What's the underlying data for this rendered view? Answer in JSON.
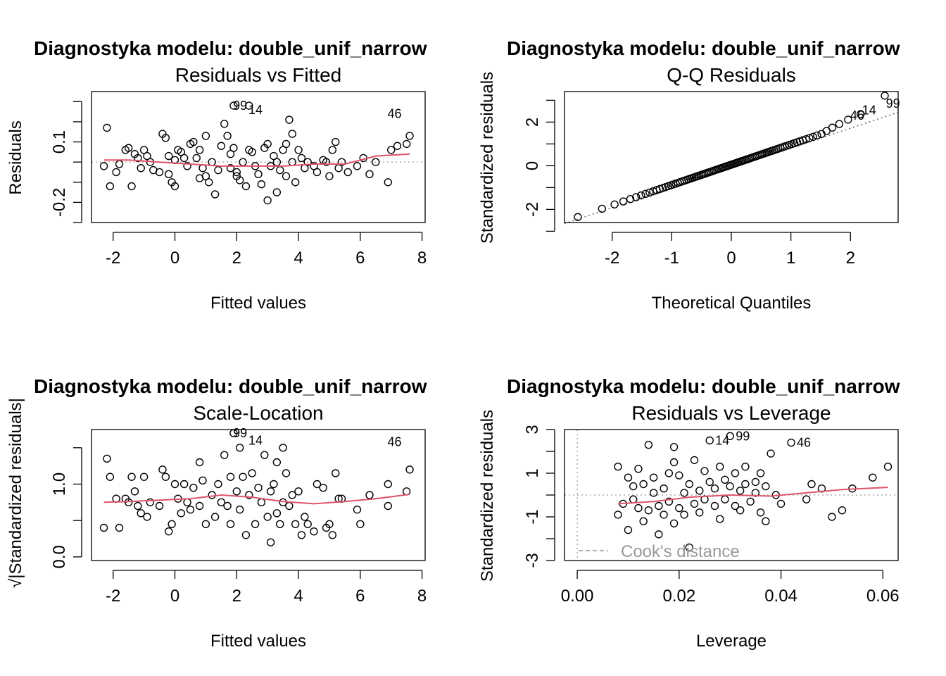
{
  "chart_data": [
    {
      "type": "scatter",
      "title": "Diagnostyka modelu: double_unif_narrow",
      "subtitle": "Residuals vs Fitted",
      "xlabel": "Fitted values",
      "ylabel": "Residuals",
      "xlim": [
        -2.7,
        8.1
      ],
      "ylim": [
        -0.3,
        0.35
      ],
      "xticks": [
        -2,
        0,
        2,
        4,
        6,
        8
      ],
      "xtick_labels": [
        "-2",
        "0",
        "2",
        "4",
        "6",
        "8"
      ],
      "yticks": [
        -0.3,
        -0.2,
        -0.1,
        0.0,
        0.1,
        0.2,
        0.3
      ],
      "ytick_labels": [
        "",
        "-0.2",
        "",
        "",
        "0.1",
        "",
        ""
      ],
      "hline": 0,
      "points": [
        [
          -2.3,
          -0.02
        ],
        [
          -2.2,
          0.17
        ],
        [
          -2.1,
          -0.12
        ],
        [
          -1.9,
          -0.05
        ],
        [
          -1.8,
          -0.01
        ],
        [
          -1.6,
          0.06
        ],
        [
          -1.5,
          0.07
        ],
        [
          -1.4,
          -0.12
        ],
        [
          -1.3,
          0.04
        ],
        [
          -1.2,
          0.02
        ],
        [
          -1.1,
          -0.03
        ],
        [
          -1.0,
          0.06
        ],
        [
          -0.9,
          0.03
        ],
        [
          -0.8,
          0.0
        ],
        [
          -0.7,
          -0.04
        ],
        [
          -0.5,
          -0.05
        ],
        [
          -0.4,
          0.14
        ],
        [
          -0.3,
          0.12
        ],
        [
          -0.2,
          0.03
        ],
        [
          -0.2,
          -0.06
        ],
        [
          -0.1,
          -0.1
        ],
        [
          0.0,
          -0.12
        ],
        [
          0.0,
          0.01
        ],
        [
          0.1,
          0.06
        ],
        [
          0.2,
          0.05
        ],
        [
          0.3,
          0.02
        ],
        [
          0.4,
          -0.02
        ],
        [
          0.5,
          0.09
        ],
        [
          0.6,
          0.1
        ],
        [
          0.7,
          0.02
        ],
        [
          0.8,
          -0.08
        ],
        [
          0.8,
          0.06
        ],
        [
          0.9,
          -0.03
        ],
        [
          1.0,
          0.13
        ],
        [
          1.0,
          -0.07
        ],
        [
          1.1,
          -0.1
        ],
        [
          1.2,
          0.0
        ],
        [
          1.3,
          -0.16
        ],
        [
          1.4,
          -0.04
        ],
        [
          1.5,
          0.08
        ],
        [
          1.6,
          0.19
        ],
        [
          1.7,
          0.13
        ],
        [
          1.8,
          0.04
        ],
        [
          1.8,
          -0.03
        ],
        [
          1.9,
          0.07
        ],
        [
          1.9,
          0.28
        ],
        [
          2.0,
          -0.05
        ],
        [
          2.0,
          -0.07
        ],
        [
          2.1,
          -0.09
        ],
        [
          2.2,
          0.0
        ],
        [
          2.3,
          -0.12
        ],
        [
          2.4,
          0.06
        ],
        [
          2.5,
          0.05
        ],
        [
          2.6,
          -0.02
        ],
        [
          2.7,
          -0.06
        ],
        [
          2.8,
          -0.11
        ],
        [
          2.9,
          0.07
        ],
        [
          3.0,
          0.09
        ],
        [
          3.0,
          -0.19
        ],
        [
          3.1,
          -0.02
        ],
        [
          3.2,
          0.03
        ],
        [
          3.3,
          0.0
        ],
        [
          3.3,
          -0.15
        ],
        [
          3.4,
          -0.04
        ],
        [
          3.5,
          0.06
        ],
        [
          3.6,
          0.09
        ],
        [
          3.6,
          -0.07
        ],
        [
          3.7,
          0.21
        ],
        [
          3.8,
          0.0
        ],
        [
          3.8,
          0.14
        ],
        [
          3.9,
          -0.1
        ],
        [
          4.0,
          0.06
        ],
        [
          4.1,
          0.02
        ],
        [
          4.2,
          -0.03
        ],
        [
          4.3,
          0.0
        ],
        [
          4.5,
          -0.02
        ],
        [
          4.6,
          -0.05
        ],
        [
          4.8,
          0.01
        ],
        [
          4.9,
          0.0
        ],
        [
          5.0,
          -0.07
        ],
        [
          5.1,
          0.06
        ],
        [
          5.2,
          0.1
        ],
        [
          5.3,
          -0.03
        ],
        [
          5.4,
          0.0
        ],
        [
          5.6,
          -0.05
        ],
        [
          5.9,
          -0.02
        ],
        [
          6.1,
          0.02
        ],
        [
          6.3,
          -0.06
        ],
        [
          6.5,
          0.0
        ],
        [
          6.9,
          -0.1
        ],
        [
          7.0,
          0.06
        ],
        [
          7.2,
          0.08
        ],
        [
          7.5,
          0.09
        ],
        [
          7.6,
          0.13
        ],
        [
          2.4,
          0.28
        ]
      ],
      "labeled_points": [
        {
          "label": "99",
          "x": 1.7,
          "y": 0.28
        },
        {
          "label": "14",
          "x": 2.2,
          "y": 0.26
        },
        {
          "label": "46",
          "x": 6.7,
          "y": 0.24
        }
      ],
      "smooth_line": [
        [
          -2.3,
          0.01
        ],
        [
          -1.5,
          0.01
        ],
        [
          -0.5,
          0.0
        ],
        [
          0.5,
          -0.01
        ],
        [
          1.5,
          -0.02
        ],
        [
          2.5,
          -0.02
        ],
        [
          3.5,
          -0.02
        ],
        [
          4.5,
          -0.01
        ],
        [
          5.5,
          -0.01
        ],
        [
          6.5,
          0.03
        ],
        [
          7.6,
          0.04
        ]
      ]
    },
    {
      "type": "scatter",
      "title": "Diagnostyka modelu: double_unif_narrow",
      "subtitle": "Q-Q Residuals",
      "xlabel": "Theoretical Quantiles",
      "ylabel": "Standardized residuals",
      "xlim": [
        -2.8,
        2.8
      ],
      "ylim": [
        -2.6,
        3.4
      ],
      "xticks": [
        -2,
        -1,
        0,
        1,
        2
      ],
      "xtick_labels": [
        "-2",
        "-1",
        "0",
        "1",
        "2"
      ],
      "yticks": [
        -3,
        -2,
        -1,
        0,
        1,
        2,
        3
      ],
      "ytick_labels": [
        "",
        "-2",
        "",
        "0",
        "",
        "2",
        ""
      ],
      "reference_line": [
        [
          -2.8,
          -2.65
        ],
        [
          2.8,
          2.45
        ]
      ],
      "qq_points": {
        "n": 100,
        "min": -2.35,
        "max": 2.85
      },
      "labeled_points": [
        {
          "label": "46",
          "x": 1.9,
          "y": 2.3
        },
        {
          "label": "14",
          "x": 2.1,
          "y": 2.55
        },
        {
          "label": "99",
          "x": 2.5,
          "y": 2.85
        }
      ]
    },
    {
      "type": "scatter",
      "title": "Diagnostyka modelu: double_unif_narrow",
      "subtitle": "Scale-Location",
      "xlabel": "Fitted values",
      "ylabel": "√|Standardized residuals|",
      "xlim": [
        -2.7,
        8.1
      ],
      "ylim": [
        -0.05,
        1.75
      ],
      "xticks": [
        -2,
        0,
        2,
        4,
        6,
        8
      ],
      "xtick_labels": [
        "-2",
        "0",
        "2",
        "4",
        "6",
        "8"
      ],
      "yticks": [
        0.0,
        0.5,
        1.0,
        1.5
      ],
      "ytick_labels": [
        "0.0",
        "",
        "1.0",
        ""
      ],
      "points": [
        [
          -2.3,
          0.4
        ],
        [
          -2.2,
          1.35
        ],
        [
          -2.1,
          1.1
        ],
        [
          -1.9,
          0.8
        ],
        [
          -1.8,
          0.4
        ],
        [
          -1.6,
          0.8
        ],
        [
          -1.5,
          0.75
        ],
        [
          -1.4,
          1.1
        ],
        [
          -1.3,
          0.9
        ],
        [
          -1.2,
          0.7
        ],
        [
          -1.1,
          0.6
        ],
        [
          -1.0,
          1.1
        ],
        [
          -0.9,
          0.55
        ],
        [
          -0.8,
          0.75
        ],
        [
          -0.5,
          0.7
        ],
        [
          -0.4,
          1.2
        ],
        [
          -0.3,
          1.1
        ],
        [
          -0.2,
          0.35
        ],
        [
          -0.1,
          0.45
        ],
        [
          0.0,
          1.0
        ],
        [
          0.1,
          0.8
        ],
        [
          0.2,
          0.6
        ],
        [
          0.3,
          1.0
        ],
        [
          0.4,
          0.75
        ],
        [
          0.5,
          0.65
        ],
        [
          0.6,
          0.95
        ],
        [
          0.8,
          1.3
        ],
        [
          0.8,
          0.7
        ],
        [
          0.9,
          1.05
        ],
        [
          1.0,
          0.45
        ],
        [
          1.2,
          0.85
        ],
        [
          1.3,
          0.55
        ],
        [
          1.4,
          1.0
        ],
        [
          1.5,
          0.75
        ],
        [
          1.6,
          1.4
        ],
        [
          1.7,
          0.7
        ],
        [
          1.8,
          1.1
        ],
        [
          1.8,
          0.45
        ],
        [
          1.9,
          1.7
        ],
        [
          2.0,
          0.9
        ],
        [
          2.1,
          0.65
        ],
        [
          2.1,
          1.5
        ],
        [
          2.2,
          1.1
        ],
        [
          2.3,
          0.3
        ],
        [
          2.4,
          0.85
        ],
        [
          2.5,
          1.15
        ],
        [
          2.6,
          0.45
        ],
        [
          2.7,
          0.95
        ],
        [
          2.8,
          0.75
        ],
        [
          2.9,
          1.4
        ],
        [
          3.0,
          0.55
        ],
        [
          3.1,
          0.2
        ],
        [
          3.1,
          0.9
        ],
        [
          3.2,
          1.0
        ],
        [
          3.3,
          0.6
        ],
        [
          3.3,
          1.3
        ],
        [
          3.4,
          0.45
        ],
        [
          3.5,
          1.5
        ],
        [
          3.5,
          0.75
        ],
        [
          3.6,
          1.15
        ],
        [
          3.7,
          0.7
        ],
        [
          3.8,
          0.85
        ],
        [
          3.9,
          0.45
        ],
        [
          4.0,
          0.9
        ],
        [
          4.1,
          0.3
        ],
        [
          4.2,
          0.55
        ],
        [
          4.3,
          0.45
        ],
        [
          4.5,
          0.35
        ],
        [
          4.6,
          1.0
        ],
        [
          4.8,
          0.95
        ],
        [
          4.9,
          0.4
        ],
        [
          5.0,
          0.45
        ],
        [
          5.1,
          0.3
        ],
        [
          5.2,
          1.15
        ],
        [
          5.3,
          0.8
        ],
        [
          5.4,
          0.8
        ],
        [
          5.9,
          0.65
        ],
        [
          6.0,
          0.45
        ],
        [
          6.3,
          0.85
        ],
        [
          6.9,
          0.7
        ],
        [
          6.9,
          1.0
        ],
        [
          7.5,
          0.9
        ],
        [
          7.6,
          1.2
        ]
      ],
      "labeled_points": [
        {
          "label": "99",
          "x": 1.7,
          "y": 1.7
        },
        {
          "label": "14",
          "x": 2.2,
          "y": 1.6
        },
        {
          "label": "46",
          "x": 6.7,
          "y": 1.58
        }
      ],
      "smooth_line": [
        [
          -2.3,
          0.75
        ],
        [
          -1.5,
          0.76
        ],
        [
          -0.5,
          0.78
        ],
        [
          0.5,
          0.8
        ],
        [
          1.5,
          0.85
        ],
        [
          2.5,
          0.82
        ],
        [
          3.5,
          0.76
        ],
        [
          4.5,
          0.73
        ],
        [
          5.5,
          0.76
        ],
        [
          6.5,
          0.8
        ],
        [
          7.6,
          0.86
        ]
      ]
    },
    {
      "type": "scatter",
      "title": "Diagnostyka modelu: double_unif_narrow",
      "subtitle": "Residuals vs Leverage",
      "xlabel": "Leverage",
      "ylabel": "Standardized residuals",
      "xlim": [
        -0.0025,
        0.063
      ],
      "ylim": [
        -3.0,
        3.0
      ],
      "xticks": [
        0.0,
        0.02,
        0.04,
        0.06
      ],
      "xtick_labels": [
        "0.00",
        "0.02",
        "0.04",
        "0.06"
      ],
      "yticks": [
        -3,
        -2,
        -1,
        0,
        1,
        2,
        3
      ],
      "ytick_labels": [
        "-3",
        "",
        "-1",
        "",
        "1",
        "",
        "3"
      ],
      "hline": 0,
      "vline": 0,
      "legend": {
        "label": "Cook's distance",
        "position": "bottom-left"
      },
      "points": [
        [
          0.008,
          1.3
        ],
        [
          0.008,
          -0.9
        ],
        [
          0.009,
          -0.4
        ],
        [
          0.01,
          0.8
        ],
        [
          0.01,
          -1.6
        ],
        [
          0.011,
          0.4
        ],
        [
          0.011,
          -0.2
        ],
        [
          0.012,
          1.2
        ],
        [
          0.012,
          -0.6
        ],
        [
          0.013,
          0.5
        ],
        [
          0.013,
          -1.2
        ],
        [
          0.014,
          2.3
        ],
        [
          0.014,
          -0.7
        ],
        [
          0.015,
          0.1
        ],
        [
          0.015,
          0.8
        ],
        [
          0.016,
          -0.5
        ],
        [
          0.016,
          -1.8
        ],
        [
          0.017,
          0.3
        ],
        [
          0.017,
          -0.9
        ],
        [
          0.018,
          1.0
        ],
        [
          0.018,
          -0.3
        ],
        [
          0.019,
          2.2
        ],
        [
          0.019,
          -1.3
        ],
        [
          0.019,
          1.5
        ],
        [
          0.02,
          -0.6
        ],
        [
          0.02,
          0.9
        ],
        [
          0.021,
          0.1
        ],
        [
          0.021,
          -0.9
        ],
        [
          0.022,
          0.5
        ],
        [
          0.022,
          -2.4
        ],
        [
          0.023,
          1.6
        ],
        [
          0.023,
          -0.4
        ],
        [
          0.024,
          0.2
        ],
        [
          0.024,
          -0.8
        ],
        [
          0.025,
          1.1
        ],
        [
          0.025,
          -0.2
        ],
        [
          0.026,
          0.6
        ],
        [
          0.026,
          2.5
        ],
        [
          0.027,
          -0.5
        ],
        [
          0.027,
          0.3
        ],
        [
          0.028,
          1.3
        ],
        [
          0.028,
          -1.1
        ],
        [
          0.029,
          0.7
        ],
        [
          0.029,
          -0.2
        ],
        [
          0.03,
          2.7
        ],
        [
          0.03,
          0.4
        ],
        [
          0.031,
          -0.5
        ],
        [
          0.031,
          1.0
        ],
        [
          0.032,
          0.2
        ],
        [
          0.032,
          -0.7
        ],
        [
          0.033,
          0.5
        ],
        [
          0.033,
          1.3
        ],
        [
          0.034,
          -0.3
        ],
        [
          0.035,
          0.1
        ],
        [
          0.035,
          0.6
        ],
        [
          0.036,
          -0.8
        ],
        [
          0.036,
          1.0
        ],
        [
          0.037,
          -1.2
        ],
        [
          0.037,
          0.4
        ],
        [
          0.038,
          1.9
        ],
        [
          0.039,
          0.0
        ],
        [
          0.04,
          -0.4
        ],
        [
          0.042,
          2.4
        ],
        [
          0.045,
          -0.2
        ],
        [
          0.046,
          0.5
        ],
        [
          0.048,
          0.3
        ],
        [
          0.05,
          -1.0
        ],
        [
          0.052,
          -0.7
        ],
        [
          0.054,
          0.3
        ],
        [
          0.058,
          0.8
        ],
        [
          0.061,
          1.3
        ]
      ],
      "labeled_points": [
        {
          "label": "14",
          "x": 0.026,
          "y": 2.5
        },
        {
          "label": "99",
          "x": 0.03,
          "y": 2.7
        },
        {
          "label": "46",
          "x": 0.042,
          "y": 2.4
        }
      ],
      "smooth_line": [
        [
          0.008,
          -0.4
        ],
        [
          0.015,
          -0.3
        ],
        [
          0.022,
          -0.1
        ],
        [
          0.03,
          0.0
        ],
        [
          0.038,
          -0.05
        ],
        [
          0.045,
          0.1
        ],
        [
          0.052,
          0.25
        ],
        [
          0.061,
          0.35
        ]
      ]
    }
  ]
}
